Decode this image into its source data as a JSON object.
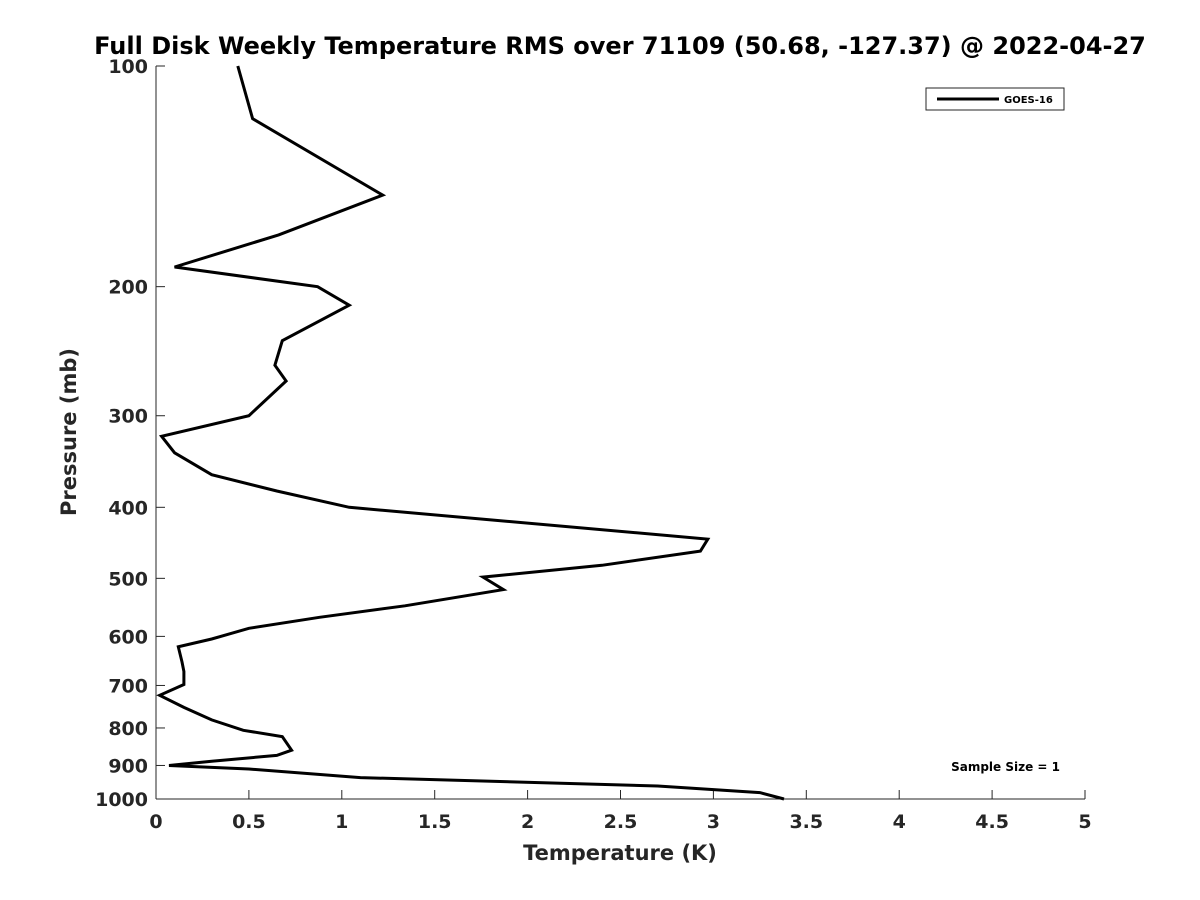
{
  "chart_data": {
    "type": "line",
    "title": "Full Disk Weekly Temperature RMS over 71109 (50.68, -127.37) @ 2022-04-27",
    "xlabel": "Temperature (K)",
    "ylabel": "Pressure (mb)",
    "xlim": [
      0,
      5
    ],
    "ylim": [
      100,
      1000
    ],
    "yscale": "log",
    "yreversed": true,
    "xticks": [
      0,
      0.5,
      1,
      1.5,
      2,
      2.5,
      3,
      3.5,
      4,
      4.5,
      5
    ],
    "xtick_labels": [
      "0",
      "0.5",
      "1",
      "1.5",
      "2",
      "2.5",
      "3",
      "3.5",
      "4",
      "4.5",
      "5"
    ],
    "yticks": [
      100,
      200,
      300,
      400,
      500,
      600,
      700,
      800,
      900,
      1000
    ],
    "ytick_labels": [
      "100",
      "200",
      "300",
      "400",
      "500",
      "600",
      "700",
      "800",
      "900",
      "1000"
    ],
    "grid": false,
    "legend_position": "top-right",
    "annotation": "Sample Size = 1",
    "series": [
      {
        "name": "GOES-16",
        "color": "#000000",
        "x": [
          0.44,
          0.52,
          1.22,
          0.66,
          0.1,
          0.87,
          1.04,
          0.68,
          0.64,
          0.7,
          0.5,
          0.03,
          0.1,
          0.3,
          0.65,
          1.04,
          2.97,
          2.93,
          2.4,
          1.76,
          1.87,
          1.34,
          0.88,
          0.5,
          0.3,
          0.12,
          0.14,
          0.15,
          0.15,
          0.02,
          0.15,
          0.3,
          0.47,
          0.68,
          0.73,
          0.65,
          0.3,
          0.07,
          0.5,
          1.1,
          2.7,
          3.25,
          3.38
        ],
        "y": [
          100,
          118,
          150,
          170,
          188,
          200,
          212,
          237,
          256,
          269,
          300,
          320,
          337,
          361,
          380,
          400,
          442,
          459,
          480,
          498,
          518,
          545,
          565,
          585,
          605,
          620,
          650,
          670,
          698,
          722,
          750,
          780,
          806,
          822,
          858,
          872,
          888,
          900,
          910,
          935,
          960,
          980,
          1000
        ]
      }
    ]
  }
}
